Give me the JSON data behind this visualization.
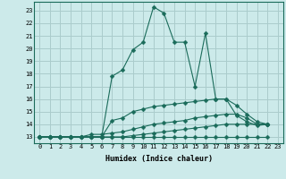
{
  "xlabel": "Humidex (Indice chaleur)",
  "background_color": "#cceaea",
  "grid_color": "#aacccc",
  "line_color": "#1a6b5a",
  "xlim": [
    -0.5,
    23.5
  ],
  "ylim": [
    12.5,
    23.7
  ],
  "yticks": [
    13,
    14,
    15,
    16,
    17,
    18,
    19,
    20,
    21,
    22,
    23
  ],
  "xticks": [
    0,
    1,
    2,
    3,
    4,
    5,
    6,
    7,
    8,
    9,
    10,
    11,
    12,
    13,
    14,
    15,
    16,
    17,
    18,
    19,
    20,
    21,
    22,
    23
  ],
  "lines": [
    {
      "x": [
        0,
        1,
        2,
        3,
        4,
        5,
        6,
        7,
        8,
        9,
        10,
        11,
        12,
        13,
        14,
        15,
        16,
        17,
        18,
        19,
        20,
        21,
        22
      ],
      "y": [
        13.0,
        13.0,
        13.0,
        13.0,
        13.0,
        13.0,
        13.0,
        17.8,
        18.3,
        19.9,
        20.5,
        23.3,
        22.8,
        20.5,
        20.5,
        17.0,
        21.2,
        16.0,
        16.0,
        14.7,
        14.2,
        13.9,
        14.0
      ]
    },
    {
      "x": [
        0,
        1,
        2,
        3,
        4,
        5,
        6,
        7,
        8,
        9,
        10,
        11,
        12,
        13,
        14,
        15,
        16,
        17,
        18,
        19,
        20,
        21,
        22
      ],
      "y": [
        13.0,
        13.0,
        13.0,
        13.0,
        13.0,
        13.0,
        13.0,
        14.3,
        14.5,
        15.0,
        15.2,
        15.4,
        15.5,
        15.6,
        15.7,
        15.8,
        15.9,
        16.0,
        16.0,
        15.5,
        14.8,
        14.2,
        14.0
      ]
    },
    {
      "x": [
        0,
        1,
        2,
        3,
        4,
        5,
        6,
        7,
        8,
        9,
        10,
        11,
        12,
        13,
        14,
        15,
        16,
        17,
        18,
        19,
        20,
        21,
        22
      ],
      "y": [
        13.0,
        13.0,
        13.0,
        13.0,
        13.0,
        13.2,
        13.2,
        13.3,
        13.4,
        13.6,
        13.8,
        14.0,
        14.1,
        14.2,
        14.3,
        14.5,
        14.6,
        14.7,
        14.8,
        14.8,
        14.5,
        14.0,
        14.0
      ]
    },
    {
      "x": [
        0,
        1,
        2,
        3,
        4,
        5,
        6,
        7,
        8,
        9,
        10,
        11,
        12,
        13,
        14,
        15,
        16,
        17,
        18,
        19,
        20,
        21,
        22
      ],
      "y": [
        13.0,
        13.0,
        13.0,
        13.0,
        13.0,
        13.0,
        13.0,
        13.0,
        13.0,
        13.1,
        13.2,
        13.3,
        13.4,
        13.5,
        13.6,
        13.7,
        13.8,
        13.9,
        14.0,
        14.0,
        14.0,
        14.0,
        14.0
      ]
    },
    {
      "x": [
        0,
        1,
        2,
        3,
        4,
        5,
        6,
        7,
        8,
        9,
        10,
        11,
        12,
        13,
        14,
        15,
        16,
        17,
        18,
        19,
        20,
        21,
        22
      ],
      "y": [
        13.0,
        13.0,
        13.0,
        13.0,
        13.0,
        13.0,
        13.0,
        13.0,
        13.0,
        13.0,
        13.0,
        13.0,
        13.0,
        13.0,
        13.0,
        13.0,
        13.0,
        13.0,
        13.0,
        13.0,
        13.0,
        13.0,
        13.0
      ]
    }
  ],
  "markersize": 2.5
}
